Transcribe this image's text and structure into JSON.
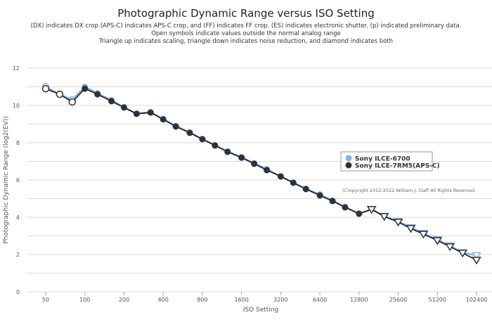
{
  "chart_data": {
    "type": "line",
    "title": "Photographic Dynamic Range versus ISO Setting",
    "subtitle": [
      "(DX) indicates DX crop (APS-C) indicates APS-C crop, and (FF) indicates FF crop. (ES) indicates electronic shutter. (p) indicated preliminary data.",
      "Open symbols indicate values outside the normal analog range",
      "Triangle up indicates scaling, triangle down indicates noise reduction, and diamond indicates both"
    ],
    "xlabel": "ISO Setting",
    "ylabel": "Photographic Dynamic Range (log2(EV))",
    "x_scale": "log2",
    "xlim": [
      50,
      102400
    ],
    "ylim": [
      0,
      12
    ],
    "grid": true,
    "x_ticks": [
      "50",
      "100",
      "200",
      "400",
      "800",
      "1600",
      "3200",
      "6400",
      "12800",
      "25600",
      "51200",
      "102400"
    ],
    "y_ticks": [
      "0",
      "2",
      "4",
      "6",
      "8",
      "10",
      "12"
    ],
    "copyright": "(C)opyright 2012-2022 William J. Claff All Rights Reserved.",
    "legend_position": "right-middle",
    "iso": [
      50,
      64,
      80,
      100,
      125,
      160,
      200,
      250,
      320,
      400,
      500,
      640,
      800,
      1000,
      1250,
      1600,
      2000,
      2500,
      3200,
      4000,
      5000,
      6400,
      8000,
      10000,
      12800,
      16000,
      20000,
      25600,
      32000,
      40000,
      51200,
      64000,
      80000,
      102400
    ],
    "series": [
      {
        "name": "Sony ILCE-6700",
        "color": "#7cb5ec",
        "values": [
          11.0,
          10.6,
          10.3,
          11.0,
          10.65,
          10.28,
          9.9,
          9.56,
          9.64,
          9.28,
          8.9,
          8.55,
          8.2,
          7.87,
          7.53,
          7.22,
          6.9,
          6.58,
          6.2,
          5.86,
          5.53,
          5.22,
          4.9,
          4.55,
          4.2,
          4.43,
          4.06,
          3.78,
          3.45,
          3.14,
          2.8,
          2.47,
          2.1,
          1.95
        ],
        "markers": [
          "open-circle",
          "open-circle",
          "open-circle",
          "circle",
          "circle",
          "circle",
          "circle",
          "circle",
          "circle",
          "circle",
          "circle",
          "circle",
          "circle",
          "circle",
          "circle",
          "circle",
          "circle",
          "circle",
          "circle",
          "circle",
          "circle",
          "circle",
          "circle",
          "circle",
          "circle",
          "triangle-down",
          "triangle-down",
          "triangle-down",
          "triangle-down",
          "triangle-down",
          "triangle-down",
          "triangle-down",
          "triangle-down",
          "triangle-down"
        ]
      },
      {
        "name": "Sony ILCE-7RM5(APS-C)",
        "color": "#303038",
        "values": [
          10.9,
          10.6,
          10.19,
          10.9,
          10.6,
          10.23,
          9.89,
          9.55,
          9.62,
          9.25,
          8.87,
          8.53,
          8.19,
          7.85,
          7.51,
          7.2,
          6.87,
          6.53,
          6.19,
          5.85,
          5.51,
          5.17,
          4.87,
          4.53,
          4.19,
          4.42,
          4.04,
          3.74,
          3.4,
          3.09,
          2.75,
          2.42,
          2.08,
          1.7
        ],
        "markers": [
          "open-circle",
          "open-circle",
          "open-circle",
          "circle",
          "circle",
          "circle",
          "circle",
          "circle",
          "circle",
          "circle",
          "circle",
          "circle",
          "circle",
          "circle",
          "circle",
          "circle",
          "circle",
          "circle",
          "circle",
          "circle",
          "circle",
          "circle",
          "circle",
          "circle",
          "circle",
          "triangle-down",
          "triangle-down",
          "triangle-down",
          "triangle-down",
          "triangle-down",
          "triangle-down",
          "triangle-down",
          "triangle-down",
          "triangle-down"
        ]
      }
    ]
  }
}
